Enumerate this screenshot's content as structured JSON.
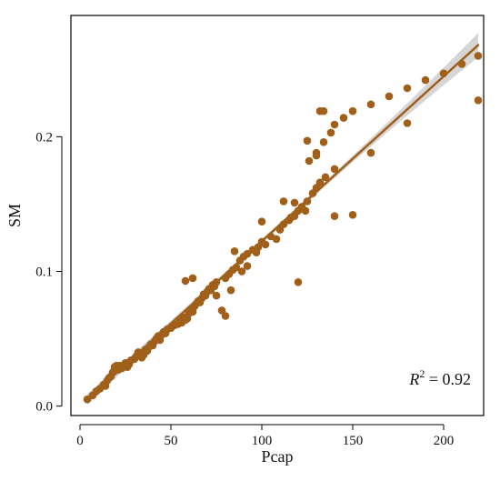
{
  "chart_data": {
    "type": "scatter",
    "xlabel": "Pcap",
    "ylabel": "SM",
    "xlim": [
      -5,
      222
    ],
    "ylim": [
      -0.007,
      0.29
    ],
    "x_ticks": [
      0,
      50,
      100,
      150,
      200
    ],
    "x_tick_labels": [
      "0",
      "50",
      "100",
      "150",
      "200"
    ],
    "y_ticks": [
      0.0,
      0.1,
      0.2
    ],
    "y_tick_labels": [
      "0.0",
      "0.1",
      "0.2"
    ],
    "grid": false,
    "legend": "none",
    "annotation": {
      "prefix": "R",
      "superscript": "2",
      "text": " = 0.92"
    },
    "regression": {
      "x": [
        4,
        219
      ],
      "y": [
        0.005,
        0.268
      ]
    },
    "colors": {
      "points": "#A0601A",
      "line": "#A0601A",
      "band": "#C8C8C8"
    },
    "points": [
      [
        4,
        0.005
      ],
      [
        7,
        0.008
      ],
      [
        9,
        0.011
      ],
      [
        11,
        0.013
      ],
      [
        13,
        0.016
      ],
      [
        14,
        0.015
      ],
      [
        15,
        0.019
      ],
      [
        16,
        0.021
      ],
      [
        17,
        0.022
      ],
      [
        18,
        0.025
      ],
      [
        19,
        0.029
      ],
      [
        20,
        0.03
      ],
      [
        21,
        0.027
      ],
      [
        22,
        0.03
      ],
      [
        23,
        0.028
      ],
      [
        25,
        0.032
      ],
      [
        26,
        0.029
      ],
      [
        27,
        0.031
      ],
      [
        28,
        0.034
      ],
      [
        30,
        0.035
      ],
      [
        31,
        0.037
      ],
      [
        32,
        0.04
      ],
      [
        33,
        0.039
      ],
      [
        34,
        0.036
      ],
      [
        35,
        0.038
      ],
      [
        36,
        0.042
      ],
      [
        37,
        0.041
      ],
      [
        38,
        0.044
      ],
      [
        39,
        0.046
      ],
      [
        40,
        0.045
      ],
      [
        41,
        0.048
      ],
      [
        42,
        0.05
      ],
      [
        43,
        0.052
      ],
      [
        44,
        0.049
      ],
      [
        45,
        0.053
      ],
      [
        46,
        0.055
      ],
      [
        47,
        0.054
      ],
      [
        48,
        0.057
      ],
      [
        50,
        0.058
      ],
      [
        52,
        0.06
      ],
      [
        54,
        0.061
      ],
      [
        55,
        0.063
      ],
      [
        56,
        0.062
      ],
      [
        57,
        0.066
      ],
      [
        58,
        0.064
      ],
      [
        59,
        0.065
      ],
      [
        60,
        0.069
      ],
      [
        61,
        0.072
      ],
      [
        62,
        0.07
      ],
      [
        63,
        0.074
      ],
      [
        64,
        0.076
      ],
      [
        65,
        0.078
      ],
      [
        66,
        0.077
      ],
      [
        67,
        0.08
      ],
      [
        68,
        0.083
      ],
      [
        69,
        0.082
      ],
      [
        70,
        0.085
      ],
      [
        71,
        0.087
      ],
      [
        72,
        0.086
      ],
      [
        73,
        0.09
      ],
      [
        74,
        0.089
      ],
      [
        75,
        0.092
      ],
      [
        62,
        0.095
      ],
      [
        58,
        0.093
      ],
      [
        80,
        0.095
      ],
      [
        82,
        0.098
      ],
      [
        84,
        0.101
      ],
      [
        86,
        0.103
      ],
      [
        88,
        0.108
      ],
      [
        90,
        0.111
      ],
      [
        92,
        0.113
      ],
      [
        95,
        0.116
      ],
      [
        98,
        0.118
      ],
      [
        100,
        0.122
      ],
      [
        85,
        0.115
      ],
      [
        105,
        0.126
      ],
      [
        110,
        0.131
      ],
      [
        112,
        0.135
      ],
      [
        115,
        0.138
      ],
      [
        118,
        0.141
      ],
      [
        120,
        0.145
      ],
      [
        122,
        0.148
      ],
      [
        125,
        0.152
      ],
      [
        128,
        0.158
      ],
      [
        130,
        0.162
      ],
      [
        132,
        0.166
      ],
      [
        135,
        0.17
      ],
      [
        140,
        0.176
      ],
      [
        126,
        0.182
      ],
      [
        130,
        0.188
      ],
      [
        134,
        0.196
      ],
      [
        138,
        0.203
      ],
      [
        140,
        0.209
      ],
      [
        145,
        0.214
      ],
      [
        150,
        0.219
      ],
      [
        160,
        0.224
      ],
      [
        170,
        0.23
      ],
      [
        180,
        0.236
      ],
      [
        190,
        0.242
      ],
      [
        200,
        0.247
      ],
      [
        210,
        0.254
      ],
      [
        219,
        0.26
      ],
      [
        120,
        0.092
      ],
      [
        150,
        0.142
      ],
      [
        180,
        0.21
      ],
      [
        219,
        0.227
      ],
      [
        125,
        0.197
      ],
      [
        130,
        0.186
      ],
      [
        132,
        0.219
      ],
      [
        134,
        0.219
      ],
      [
        100,
        0.137
      ],
      [
        97,
        0.114
      ],
      [
        83,
        0.086
      ],
      [
        80,
        0.067
      ],
      [
        78,
        0.071
      ],
      [
        75,
        0.082
      ],
      [
        89,
        0.1
      ],
      [
        92,
        0.104
      ],
      [
        102,
        0.12
      ],
      [
        108,
        0.124
      ],
      [
        116,
        0.14
      ],
      [
        124,
        0.145
      ],
      [
        118,
        0.151
      ],
      [
        112,
        0.152
      ],
      [
        140,
        0.141
      ],
      [
        160,
        0.188
      ]
    ]
  }
}
